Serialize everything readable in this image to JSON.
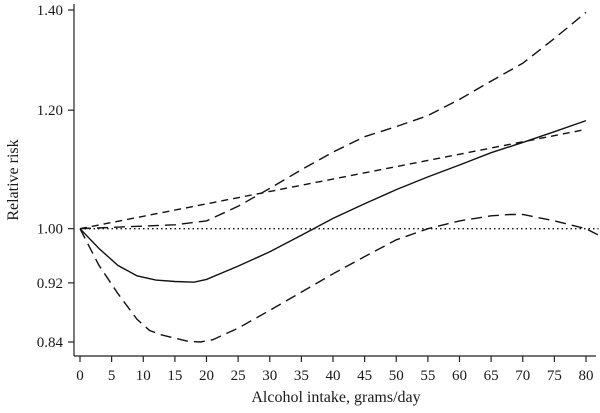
{
  "chart_data": {
    "type": "line",
    "title": "",
    "xlabel": "Alcohol intake, grams/day",
    "ylabel": "Relative risk",
    "xlim": [
      0,
      82
    ],
    "ylim": [
      0.82,
      1.405
    ],
    "y_scale": "log",
    "grid": false,
    "legend": "none",
    "x_ticks": [
      0,
      5,
      10,
      15,
      20,
      25,
      30,
      35,
      40,
      45,
      50,
      55,
      60,
      65,
      70,
      75,
      80
    ],
    "y_ticks": [
      {
        "value": 0.84,
        "label": "0.84"
      },
      {
        "value": 0.92,
        "label": "0.92"
      },
      {
        "value": 1.0,
        "label": "1.00"
      },
      {
        "value": 1.2,
        "label": "1.20"
      },
      {
        "value": 1.4,
        "label": "1.40"
      }
    ],
    "series": [
      {
        "style": "solid",
        "x": [
          0,
          3,
          6,
          9,
          12,
          15,
          18,
          20,
          25,
          30,
          35,
          40,
          45,
          50,
          55,
          60,
          65,
          70,
          75,
          80
        ],
        "y": [
          1.0,
          0.97,
          0.945,
          0.93,
          0.924,
          0.922,
          0.921,
          0.925,
          0.944,
          0.965,
          0.99,
          1.016,
          1.039,
          1.062,
          1.083,
          1.103,
          1.124,
          1.142,
          1.161,
          1.181
        ]
      },
      {
        "style": "long-dash",
        "x": [
          0,
          5,
          10,
          15,
          20,
          25,
          30,
          35,
          40,
          45,
          50,
          55,
          60,
          65,
          70,
          75,
          80
        ],
        "y": [
          1.0,
          1.002,
          1.004,
          1.006,
          1.012,
          1.035,
          1.064,
          1.095,
          1.125,
          1.152,
          1.17,
          1.19,
          1.22,
          1.255,
          1.29,
          1.34,
          1.395
        ]
      },
      {
        "style": "long-dash",
        "x": [
          0,
          3,
          6,
          9,
          11,
          13,
          15,
          17,
          19,
          21,
          25,
          30,
          35,
          40,
          45,
          50,
          55,
          60,
          65,
          68,
          70,
          75,
          80,
          82
        ],
        "y": [
          1.0,
          0.945,
          0.905,
          0.87,
          0.855,
          0.849,
          0.845,
          0.841,
          0.84,
          0.843,
          0.858,
          0.882,
          0.907,
          0.933,
          0.958,
          0.983,
          1.0,
          1.012,
          1.02,
          1.022,
          1.022,
          1.012,
          1.0,
          0.99
        ]
      },
      {
        "style": "short-dash",
        "x": [
          0,
          80
        ],
        "y": [
          1.0,
          1.165
        ]
      },
      {
        "style": "dotted",
        "x": [
          0,
          82
        ],
        "y": [
          1.0,
          1.0
        ]
      }
    ]
  }
}
